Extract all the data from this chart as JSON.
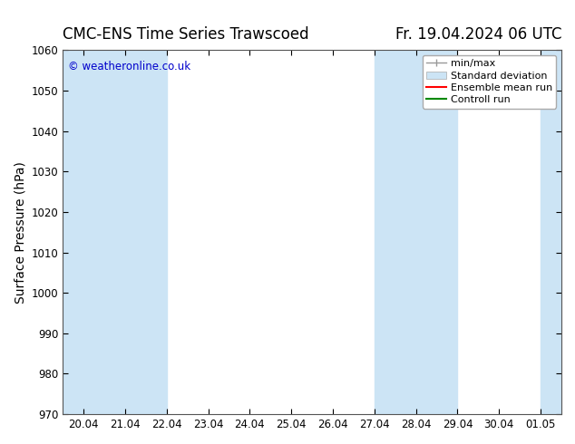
{
  "title_left": "CMC-ENS Time Series Trawscoed",
  "title_right": "Fr. 19.04.2024 06 UTC",
  "ylabel": "Surface Pressure (hPa)",
  "watermark": "© weatheronline.co.uk",
  "watermark_color": "#0000cc",
  "ylim": [
    970,
    1060
  ],
  "yticks": [
    970,
    980,
    990,
    1000,
    1010,
    1020,
    1030,
    1040,
    1050,
    1060
  ],
  "xtick_labels": [
    "20.04",
    "21.04",
    "22.04",
    "23.04",
    "24.04",
    "25.04",
    "26.04",
    "27.04",
    "28.04",
    "29.04",
    "30.04",
    "01.05"
  ],
  "xtick_positions": [
    0,
    1,
    2,
    3,
    4,
    5,
    6,
    7,
    8,
    9,
    10,
    11
  ],
  "xlim": [
    -0.5,
    11.5
  ],
  "background_color": "#ffffff",
  "plot_background": "#ffffff",
  "shaded_bands": [
    {
      "x_start": -0.5,
      "x_end": 2.0,
      "color": "#cce4f5"
    },
    {
      "x_start": 7.0,
      "x_end": 9.0,
      "color": "#cce4f5"
    },
    {
      "x_start": 11.0,
      "x_end": 11.5,
      "color": "#cce4f5"
    }
  ],
  "legend_entries": [
    {
      "label": "min/max",
      "color": "#999999",
      "type": "minmax"
    },
    {
      "label": "Standard deviation",
      "color": "#cce4f5",
      "type": "stddev"
    },
    {
      "label": "Ensemble mean run",
      "color": "#ff0000",
      "type": "line"
    },
    {
      "label": "Controll run",
      "color": "#008800",
      "type": "line"
    }
  ],
  "title_fontsize": 12,
  "tick_fontsize": 8.5,
  "ylabel_fontsize": 10,
  "legend_fontsize": 8
}
